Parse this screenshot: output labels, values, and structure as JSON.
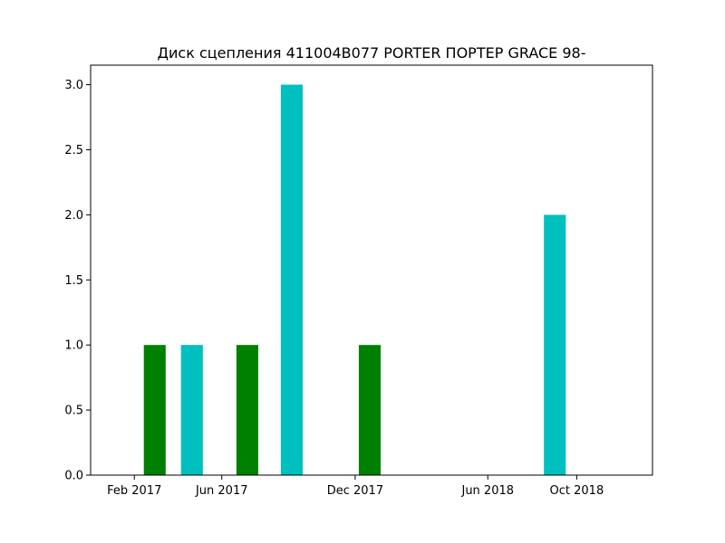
{
  "chart_data": {
    "type": "bar",
    "title": "Диск сцепления 411004B077 PORTER ПОРТЕР GRACE 98-",
    "xlabel": "",
    "ylabel": "",
    "x_axis": {
      "kind": "date",
      "range": [
        "2016-12-03",
        "2019-01-13"
      ],
      "ticks": [
        {
          "date": "2017-02-01",
          "label": "Feb 2017"
        },
        {
          "date": "2017-06-01",
          "label": "Jun 2017"
        },
        {
          "date": "2017-12-01",
          "label": "Dec 2017"
        },
        {
          "date": "2018-06-01",
          "label": "Jun 2018"
        },
        {
          "date": "2018-10-01",
          "label": "Oct 2018"
        }
      ]
    },
    "y_axis": {
      "range": [
        0,
        3.15
      ],
      "ticks": [
        {
          "value": 0.0,
          "label": "0.0"
        },
        {
          "value": 0.5,
          "label": "0.5"
        },
        {
          "value": 1.0,
          "label": "1.0"
        },
        {
          "value": 1.5,
          "label": "1.5"
        },
        {
          "value": 2.0,
          "label": "2.0"
        },
        {
          "value": 2.5,
          "label": "2.5"
        },
        {
          "value": 3.0,
          "label": "3.0"
        }
      ]
    },
    "grid": false,
    "legend": "none",
    "bars": [
      {
        "date": "2017-03-01",
        "value": 1,
        "color": "#008000"
      },
      {
        "date": "2017-04-21",
        "value": 1,
        "color": "#00bfbf"
      },
      {
        "date": "2017-07-06",
        "value": 1,
        "color": "#008000"
      },
      {
        "date": "2017-09-05",
        "value": 3,
        "color": "#00bfbf"
      },
      {
        "date": "2017-12-21",
        "value": 1,
        "color": "#008000"
      },
      {
        "date": "2018-09-01",
        "value": 2,
        "color": "#00bfbf"
      }
    ]
  }
}
